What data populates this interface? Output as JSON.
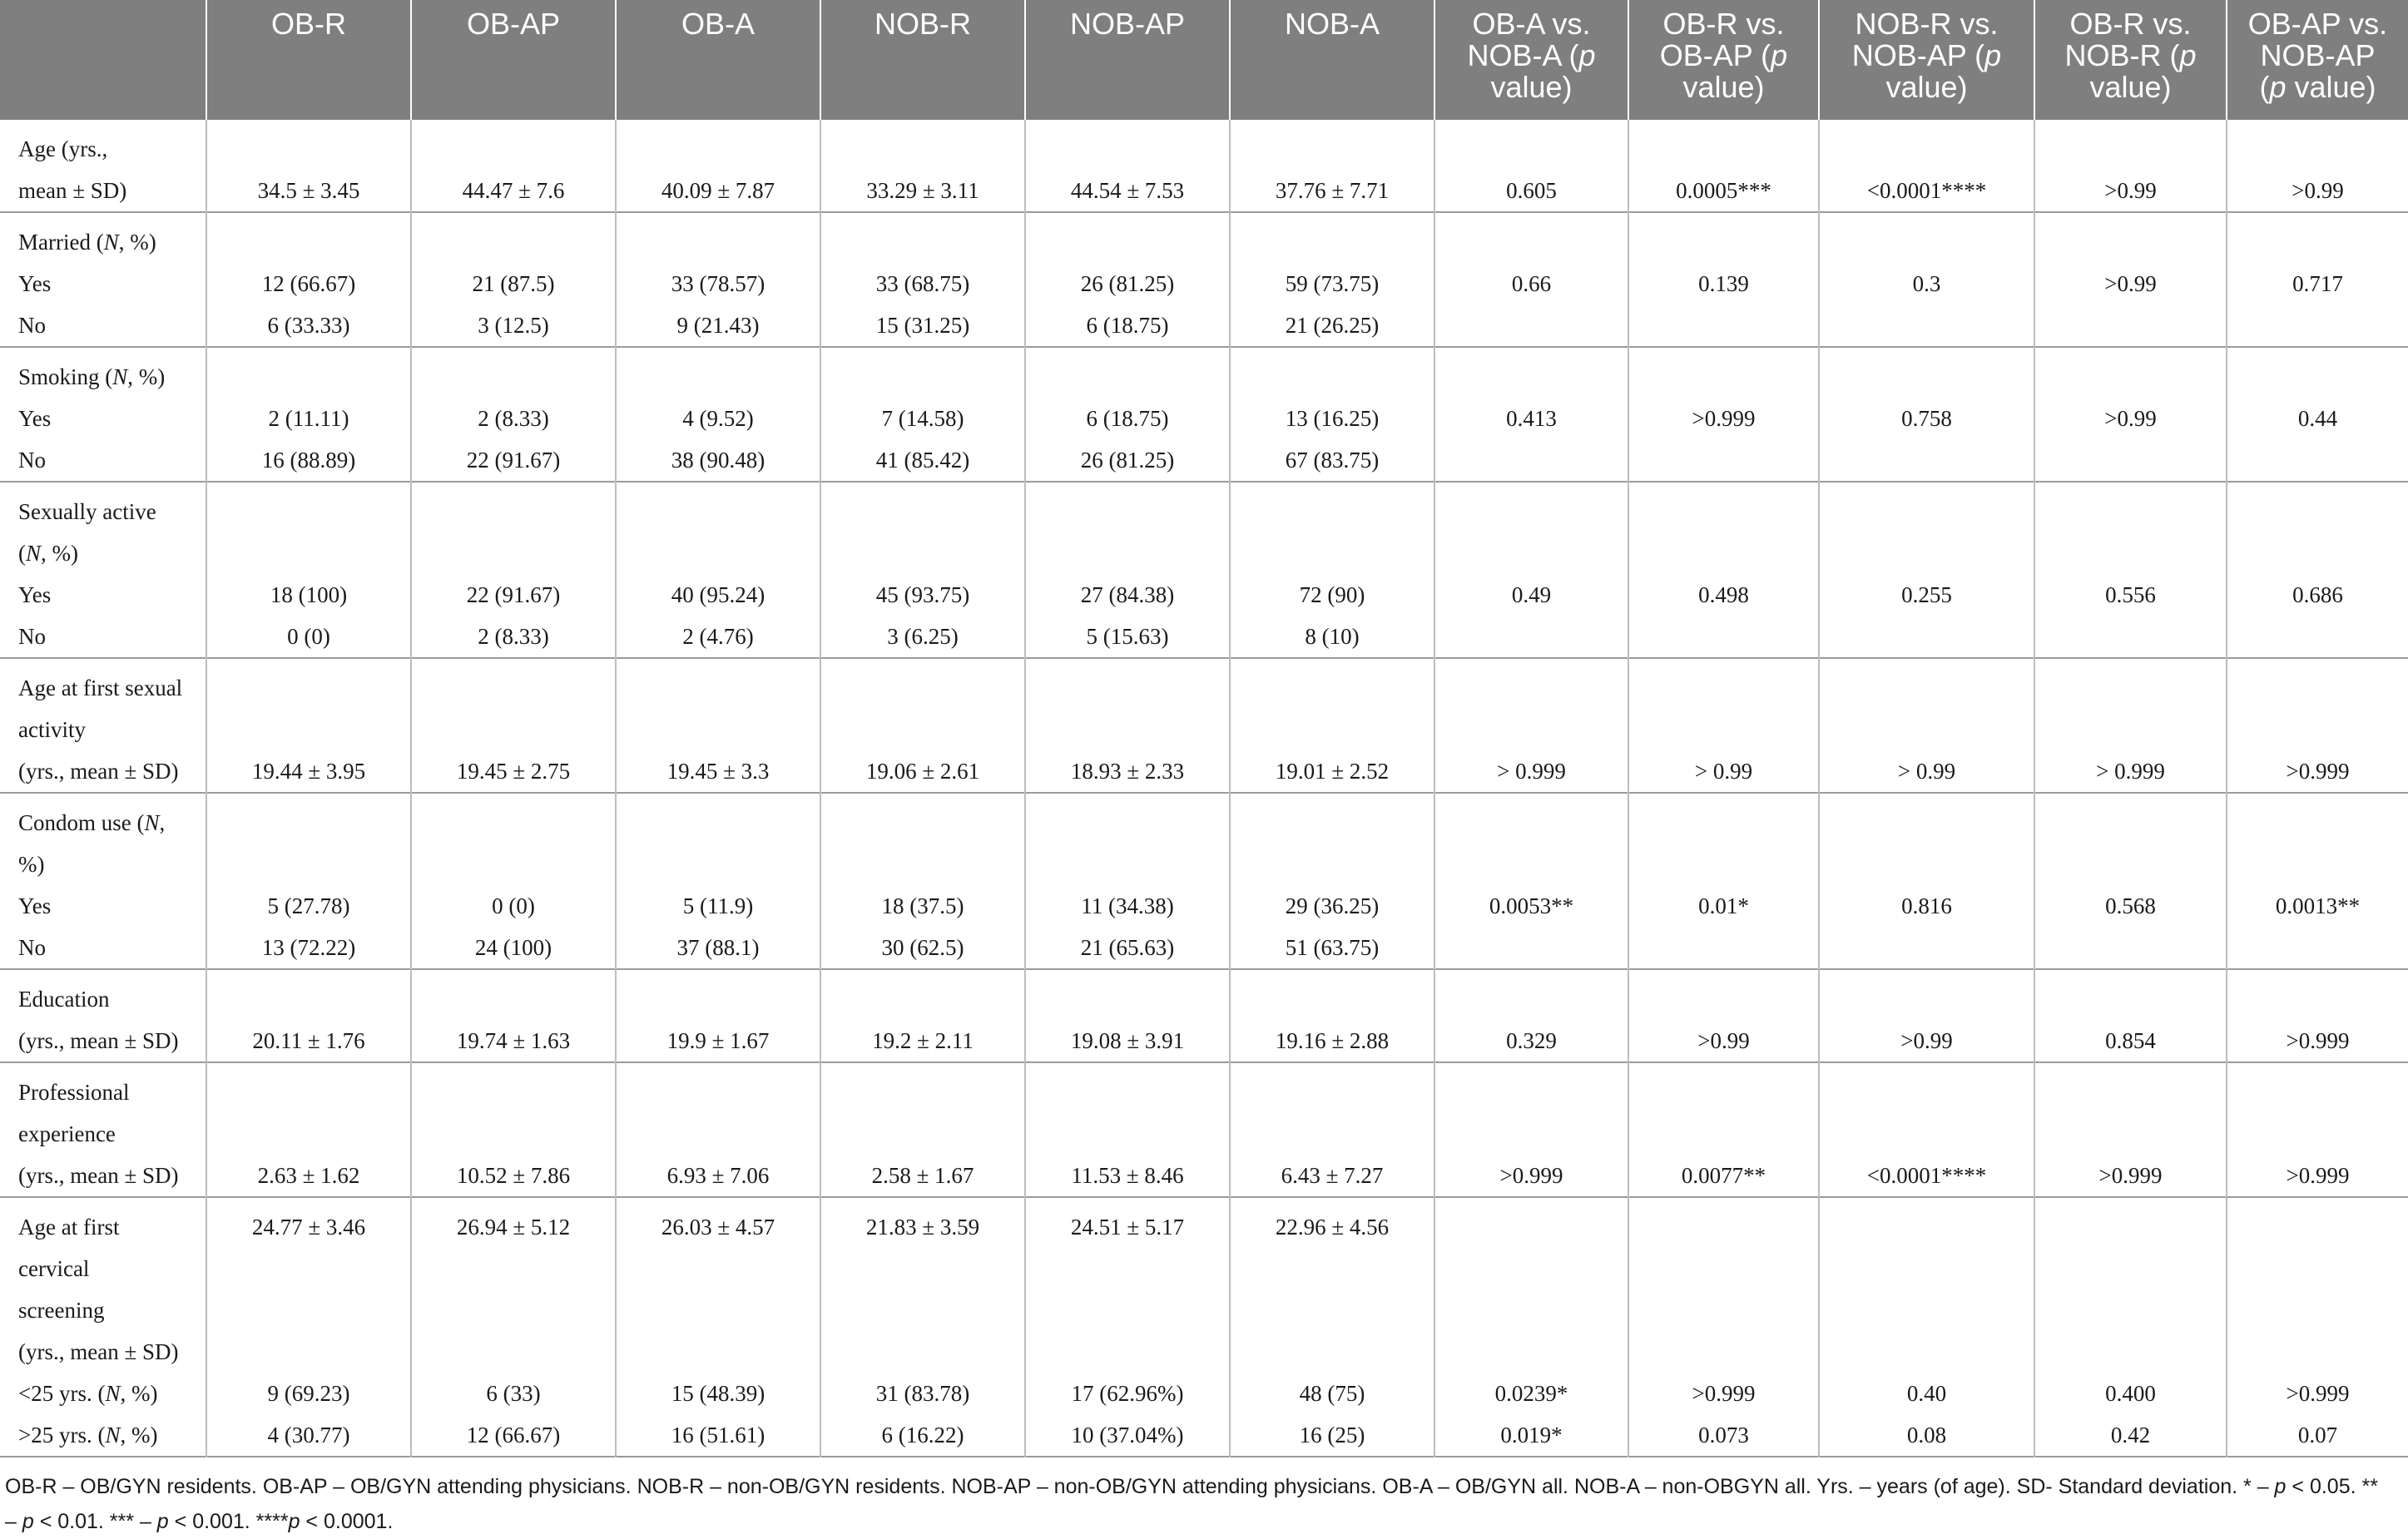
{
  "columns": [
    "",
    "OB-R",
    "OB-AP",
    "OB-A",
    "NOB-R",
    "NOB-AP",
    "NOB-A",
    "OB-A vs. NOB-A (p value)",
    "OB-R vs. OB-AP (p value)",
    "NOB-R vs. NOB-AP (p value)",
    "OB-R vs. NOB-R (p value)",
    "OB-AP vs. NOB-AP (p value)"
  ],
  "header_html": [
    "",
    "OB-R",
    "OB-AP",
    "OB-A",
    "NOB-R",
    "NOB-AP",
    "NOB-A",
    "OB-A vs.<br>NOB-A (<i>p</i><br>value)",
    "OB-R vs.<br>OB-AP (<i>p</i><br>value)",
    "NOB-R vs.<br>NOB-AP (<i>p</i><br>value)",
    "OB-R vs.<br>NOB-R (<i>p</i><br>value)",
    "OB-AP vs.<br>NOB-AP<br>(<i>p</i> value)"
  ],
  "groups": [
    {
      "id": "age",
      "label_lines": [
        "Age (yrs.,",
        "mean ± SD)"
      ],
      "rows": [
        {
          "at": 1,
          "values": [
            "34.5 ± 3.45",
            "44.47 ± 7.6",
            "40.09 ± 7.87",
            "33.29 ± 3.11",
            "44.54 ± 7.53",
            "37.76 ± 7.71",
            "0.605",
            "0.0005***",
            "<0.0001****",
            ">0.99",
            ">0.99"
          ]
        }
      ]
    },
    {
      "id": "married",
      "label_lines": [
        "Married (N, %)",
        "Yes",
        "No"
      ],
      "rows": [
        {
          "at": 1,
          "values": [
            "12 (66.67)",
            "21 (87.5)",
            "33 (78.57)",
            "33 (68.75)",
            "26 (81.25)",
            "59 (73.75)",
            "0.66",
            "0.139",
            "0.3",
            ">0.99",
            "0.717"
          ]
        },
        {
          "at": 2,
          "values": [
            "6 (33.33)",
            "3 (12.5)",
            "9 (21.43)",
            "15 (31.25)",
            "6 (18.75)",
            "21 (26.25)",
            "",
            "",
            "",
            "",
            ""
          ]
        }
      ]
    },
    {
      "id": "smoking",
      "label_lines": [
        "Smoking (N, %)",
        "Yes",
        "No"
      ],
      "rows": [
        {
          "at": 1,
          "values": [
            "2 (11.11)",
            "2 (8.33)",
            "4 (9.52)",
            "7 (14.58)",
            "6 (18.75)",
            "13 (16.25)",
            "0.413",
            ">0.999",
            "0.758",
            ">0.99",
            "0.44"
          ]
        },
        {
          "at": 2,
          "values": [
            "16 (88.89)",
            "22 (91.67)",
            "38 (90.48)",
            "41 (85.42)",
            "26 (81.25)",
            "67 (83.75)",
            "",
            "",
            "",
            "",
            ""
          ]
        }
      ]
    },
    {
      "id": "sexually_active",
      "label_lines": [
        "Sexually active",
        "(N, %)",
        "Yes",
        "No"
      ],
      "rows": [
        {
          "at": 2,
          "values": [
            "18 (100)",
            "22 (91.67)",
            "40 (95.24)",
            "45 (93.75)",
            "27 (84.38)",
            "72 (90)",
            "0.49",
            "0.498",
            "0.255",
            "0.556",
            "0.686"
          ]
        },
        {
          "at": 3,
          "values": [
            "0 (0)",
            "2 (8.33)",
            "2 (4.76)",
            "3 (6.25)",
            "5 (15.63)",
            "8 (10)",
            "",
            "",
            "",
            "",
            ""
          ]
        }
      ]
    },
    {
      "id": "age_first_sex",
      "label_lines": [
        "Age at first sexual",
        "activity",
        "(yrs., mean ± SD)"
      ],
      "rows": [
        {
          "at": 2,
          "values": [
            "19.44 ± 3.95",
            "19.45 ± 2.75",
            "19.45 ± 3.3",
            "19.06 ± 2.61",
            "18.93 ± 2.33",
            "19.01 ± 2.52",
            "> 0.999",
            "> 0.99",
            "> 0.99",
            "> 0.999",
            ">0.999"
          ]
        }
      ]
    },
    {
      "id": "condom",
      "label_lines": [
        "Condom use (N,",
        "%)",
        "Yes",
        "No"
      ],
      "rows": [
        {
          "at": 2,
          "values": [
            "5 (27.78)",
            "0 (0)",
            "5 (11.9)",
            "18 (37.5)",
            "11 (34.38)",
            "29 (36.25)",
            "0.0053**",
            "0.01*",
            "0.816",
            "0.568",
            "0.0013**"
          ]
        },
        {
          "at": 3,
          "values": [
            "13 (72.22)",
            "24 (100)",
            "37 (88.1)",
            "30 (62.5)",
            "21 (65.63)",
            "51 (63.75)",
            "",
            "",
            "",
            "",
            ""
          ]
        }
      ]
    },
    {
      "id": "education",
      "label_lines": [
        "Education",
        "(yrs., mean ± SD)"
      ],
      "rows": [
        {
          "at": 1,
          "values": [
            "20.11 ± 1.76",
            "19.74 ± 1.63",
            "19.9 ± 1.67",
            "19.2 ± 2.11",
            "19.08 ± 3.91",
            "19.16 ± 2.88",
            "0.329",
            ">0.99",
            ">0.99",
            "0.854",
            ">0.999"
          ]
        }
      ]
    },
    {
      "id": "experience",
      "label_lines": [
        "Professional",
        "experience",
        "(yrs., mean ± SD)"
      ],
      "rows": [
        {
          "at": 2,
          "values": [
            "2.63 ± 1.62",
            "10.52 ± 7.86",
            "6.93 ± 7.06",
            "2.58 ± 1.67",
            "11.53 ± 8.46",
            "6.43 ± 7.27",
            ">0.999",
            "0.0077**",
            "<0.0001****",
            ">0.999",
            ">0.999"
          ]
        }
      ]
    },
    {
      "id": "screening",
      "label_lines": [
        "Age at first",
        "cervical",
        "screening",
        "(yrs., mean ± SD)",
        "<25 yrs. (N, %)",
        ">25 yrs. (N, %)"
      ],
      "rows": [
        {
          "at": 0,
          "values": [
            "24.77 ± 3.46",
            "26.94 ± 5.12",
            "26.03 ± 4.57",
            "21.83 ± 3.59",
            "24.51 ± 5.17",
            "22.96 ± 4.56",
            "",
            "",
            "",
            "",
            ""
          ]
        },
        {
          "at": 4,
          "values": [
            "9 (69.23)",
            "6 (33)",
            "15 (48.39)",
            "31 (83.78)",
            "17 (62.96%)",
            "48 (75)",
            "0.0239*",
            ">0.999",
            "0.40",
            "0.400",
            ">0.999"
          ]
        },
        {
          "at": 5,
          "values": [
            "4 (30.77)",
            "12 (66.67)",
            "16 (51.61)",
            "6 (16.22)",
            "10 (37.04%)",
            "16 (25)",
            "0.019*",
            "0.073",
            "0.08",
            "0.42",
            "0.07"
          ]
        }
      ]
    }
  ],
  "italic_tokens": [
    "N"
  ],
  "footnote_lines": [
    "OB-R – OB/GYN residents. OB-AP – OB/GYN attending physicians. NOB-R – non-OB/GYN residents. NOB-AP – non-OB/GYN attending physicians. OB-A – OB/GYN all. NOB-A – non-OBGYN all. Yrs. – years (of age). SD- Standard deviation. * – p < 0.05. **",
    "– p < 0.01. *** – p < 0.001. ****p < 0.0001."
  ]
}
